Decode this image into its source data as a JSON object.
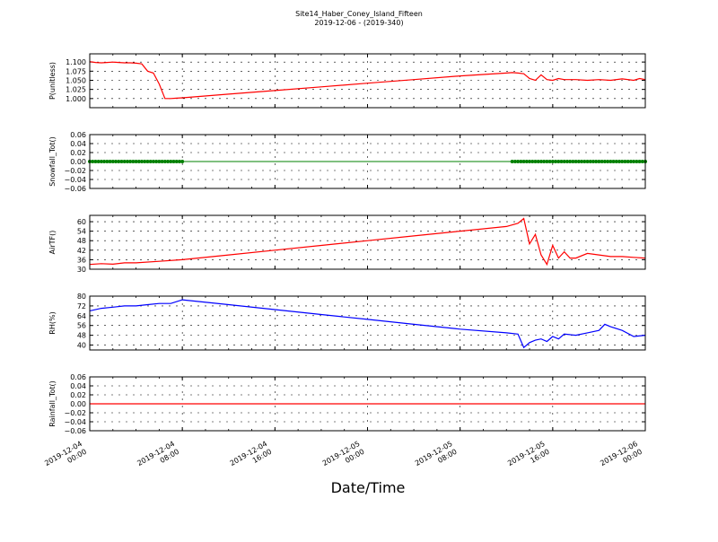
{
  "figure": {
    "title": "Site14_Haber_Coney_Island_Fifteen",
    "subtitle": "2019-12-06 - (2019-340)",
    "xlabel": "Date/Time"
  },
  "chart_data": [
    {
      "type": "line",
      "ylabel": "P(unitless)",
      "ylim": [
        0.975,
        1.1225
      ],
      "yticks": [
        "1.000",
        "1.025",
        "1.050",
        "1.075",
        "1.100"
      ],
      "grid": true,
      "color": "#ff0000",
      "x": [
        0,
        0.5,
        1,
        1.5,
        2,
        2.5,
        3,
        3.5,
        4,
        4.5,
        5,
        5.5,
        6,
        6.5,
        7,
        7.5,
        8,
        12,
        16,
        20,
        24,
        28,
        32,
        36,
        36.5,
        37,
        37.5,
        38,
        38.5,
        39,
        39.5,
        40,
        40.5,
        41,
        42,
        43,
        44,
        45,
        46,
        47,
        47.5,
        48
      ],
      "y": [
        1.101,
        1.099,
        1.098,
        1.099,
        1.1,
        1.099,
        1.098,
        1.098,
        1.097,
        1.095,
        1.075,
        1.07,
        1.04,
        1.0,
        1.0,
        1.001,
        1.002,
        1.012,
        1.022,
        1.032,
        1.042,
        1.052,
        1.062,
        1.07,
        1.071,
        1.07,
        1.068,
        1.055,
        1.05,
        1.065,
        1.052,
        1.05,
        1.055,
        1.052,
        1.052,
        1.05,
        1.052,
        1.05,
        1.054,
        1.05,
        1.055,
        1.052
      ]
    },
    {
      "type": "scatter",
      "ylabel": "Snowfall_Tot()",
      "ylim": [
        -0.06,
        0.06
      ],
      "yticks": [
        "−0.06",
        "−0.04",
        "−0.02",
        "0.00",
        "0.02",
        "0.04",
        "0.06"
      ],
      "grid": true,
      "color": "#008000",
      "segments": [
        {
          "x_start": 0,
          "x_end": 8,
          "value": 0.0
        },
        {
          "x_start": 36.5,
          "x_end": 48,
          "value": 0.0
        }
      ],
      "line": {
        "x": [
          0,
          48
        ],
        "y": [
          0,
          0
        ]
      }
    },
    {
      "type": "line",
      "ylabel": "AirTF()",
      "ylim": [
        30,
        64
      ],
      "yticks": [
        "30",
        "36",
        "42",
        "48",
        "54",
        "60"
      ],
      "grid": true,
      "color": "#ff0000",
      "x": [
        0,
        1,
        2,
        3,
        4,
        6,
        8,
        12,
        16,
        20,
        24,
        28,
        32,
        36,
        37,
        37.5,
        38,
        38.5,
        39,
        39.5,
        40,
        40.5,
        41,
        41.5,
        42,
        43,
        44,
        45,
        46,
        47,
        48
      ],
      "y": [
        33,
        33.5,
        33.2,
        34,
        34,
        35,
        36,
        39,
        42,
        45,
        48,
        51,
        54,
        57,
        59,
        62,
        46,
        52,
        39,
        33,
        45,
        37,
        41,
        37,
        37,
        40,
        39,
        38,
        38,
        37.5,
        37
      ]
    },
    {
      "type": "line",
      "ylabel": "RH(%)",
      "ylim": [
        36,
        80
      ],
      "yticks": [
        "40",
        "48",
        "56",
        "64",
        "72",
        "80"
      ],
      "grid": true,
      "color": "#0000ff",
      "x": [
        0,
        1,
        2,
        3,
        4,
        5,
        6,
        7,
        8,
        12,
        16,
        20,
        24,
        28,
        32,
        36,
        37,
        37.5,
        38,
        38.5,
        39,
        39.5,
        40,
        40.5,
        41,
        42,
        43,
        44,
        44.5,
        45,
        46,
        47,
        48
      ],
      "y": [
        68,
        70,
        71,
        72,
        72,
        73,
        74,
        74,
        77,
        73,
        69,
        65,
        61,
        57,
        53,
        50,
        49,
        38,
        42,
        44,
        45,
        43,
        47,
        45,
        49,
        48,
        50,
        52,
        57,
        55,
        52,
        47,
        48
      ]
    },
    {
      "type": "line",
      "ylabel": "Rainfall_Tot()",
      "ylim": [
        -0.06,
        0.06
      ],
      "yticks": [
        "−0.06",
        "−0.04",
        "−0.02",
        "0.00",
        "0.02",
        "0.04",
        "0.06"
      ],
      "grid": true,
      "color": "#ff0000",
      "x": [
        0,
        48
      ],
      "y": [
        0,
        0
      ]
    }
  ],
  "xaxis": {
    "xlim": [
      0,
      48
    ],
    "ticks": [
      {
        "x": 0,
        "l1": "2019-12-04",
        "l2": "00:00"
      },
      {
        "x": 8,
        "l1": "2019-12-04",
        "l2": "08:00"
      },
      {
        "x": 16,
        "l1": "2019-12-04",
        "l2": "16:00"
      },
      {
        "x": 24,
        "l1": "2019-12-05",
        "l2": "00:00"
      },
      {
        "x": 32,
        "l1": "2019-12-05",
        "l2": "08:00"
      },
      {
        "x": 40,
        "l1": "2019-12-05",
        "l2": "16:00"
      },
      {
        "x": 48,
        "l1": "2019-12-06",
        "l2": "00:00"
      }
    ]
  }
}
